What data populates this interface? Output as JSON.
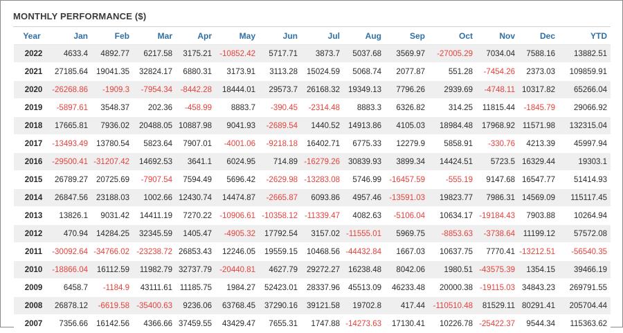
{
  "title": "MONTHLY PERFORMANCE ($)",
  "colors": {
    "header_text": "#2e6fa5",
    "negative": "#e8403a",
    "stripe": "#efefef"
  },
  "columns": [
    "Year",
    "Jan",
    "Feb",
    "Mar",
    "Apr",
    "May",
    "Jun",
    "Jul",
    "Aug",
    "Sep",
    "Oct",
    "Nov",
    "Dec",
    "YTD"
  ],
  "rows": [
    [
      "2022",
      "4633.4",
      "4892.77",
      "6217.58",
      "3175.21",
      "-10852.42",
      "5717.71",
      "3873.7",
      "5037.68",
      "3569.97",
      "-27005.29",
      "7034.04",
      "7588.16",
      "13882.51"
    ],
    [
      "2021",
      "27185.64",
      "19041.35",
      "32824.17",
      "6880.31",
      "3173.91",
      "3113.28",
      "15024.59",
      "5068.74",
      "2077.87",
      "551.28",
      "-7454.26",
      "2373.03",
      "109859.91"
    ],
    [
      "2020",
      "-26268.86",
      "-1909.3",
      "-7954.34",
      "-8442.28",
      "18444.01",
      "29573.7",
      "26168.32",
      "19349.13",
      "7796.26",
      "2939.69",
      "-4748.11",
      "10317.82",
      "65266.04"
    ],
    [
      "2019",
      "-5897.61",
      "3548.37",
      "202.36",
      "-458.99",
      "8883.7",
      "-390.45",
      "-2314.48",
      "8883.3",
      "6326.82",
      "314.25",
      "11815.44",
      "-1845.79",
      "29066.92"
    ],
    [
      "2018",
      "17665.81",
      "7936.02",
      "20488.05",
      "10887.98",
      "9041.93",
      "-2689.54",
      "1440.52",
      "14913.86",
      "4105.03",
      "18984.48",
      "17968.92",
      "11571.98",
      "132315.04"
    ],
    [
      "2017",
      "-13493.49",
      "13780.54",
      "5823.64",
      "7907.01",
      "-4001.06",
      "-9218.18",
      "16402.71",
      "6775.33",
      "12279.9",
      "5858.91",
      "-330.76",
      "4213.39",
      "45997.94"
    ],
    [
      "2016",
      "-29500.41",
      "-31207.42",
      "14692.53",
      "3641.1",
      "6024.95",
      "714.89",
      "-16279.26",
      "30839.93",
      "3899.34",
      "14424.51",
      "5723.5",
      "16329.44",
      "19303.1"
    ],
    [
      "2015",
      "26789.27",
      "20725.69",
      "-7907.54",
      "7594.49",
      "5696.42",
      "-2629.98",
      "-13283.08",
      "5746.99",
      "-16457.59",
      "-555.19",
      "9147.68",
      "16547.77",
      "51414.93"
    ],
    [
      "2014",
      "26847.56",
      "23188.03",
      "1002.66",
      "12430.74",
      "14474.87",
      "-2665.87",
      "6093.86",
      "4957.46",
      "-13591.03",
      "19823.77",
      "7986.31",
      "14569.09",
      "115117.45"
    ],
    [
      "2013",
      "13826.1",
      "9031.42",
      "14411.19",
      "7270.22",
      "-10906.61",
      "-10358.12",
      "-11339.47",
      "4082.63",
      "-5106.04",
      "10634.17",
      "-19184.43",
      "7903.88",
      "10264.94"
    ],
    [
      "2012",
      "470.94",
      "14284.25",
      "32345.59",
      "1405.47",
      "-4905.32",
      "17792.54",
      "3157.02",
      "-11555.01",
      "5969.75",
      "-8853.63",
      "-3738.64",
      "11199.12",
      "57572.08"
    ],
    [
      "2011",
      "-30092.64",
      "-34766.02",
      "-23238.72",
      "26853.43",
      "12246.05",
      "19559.15",
      "10468.56",
      "-44432.84",
      "1667.03",
      "10637.75",
      "7770.41",
      "-13212.51",
      "-56540.35"
    ],
    [
      "2010",
      "-18866.04",
      "16112.59",
      "11982.79",
      "32737.79",
      "-20440.81",
      "4627.79",
      "29272.27",
      "16238.48",
      "8042.06",
      "1980.51",
      "-43575.39",
      "1354.15",
      "39466.19"
    ],
    [
      "2009",
      "6458.7",
      "-1184.9",
      "43111.61",
      "11185.75",
      "1984.27",
      "52423.01",
      "28337.96",
      "45513.09",
      "46233.48",
      "20000.38",
      "-19115.03",
      "34843.23",
      "269791.55"
    ],
    [
      "2008",
      "26878.12",
      "-6619.58",
      "-35400.63",
      "9236.06",
      "63768.45",
      "37290.16",
      "39121.58",
      "19702.8",
      "417.44",
      "-110510.48",
      "81529.11",
      "80291.41",
      "205704.44"
    ],
    [
      "2007",
      "7356.66",
      "16142.56",
      "4366.66",
      "37459.55",
      "43429.47",
      "7655.31",
      "1747.88",
      "-14273.63",
      "17130.41",
      "10226.78",
      "-25422.37",
      "9544.34",
      "115363.62"
    ]
  ]
}
